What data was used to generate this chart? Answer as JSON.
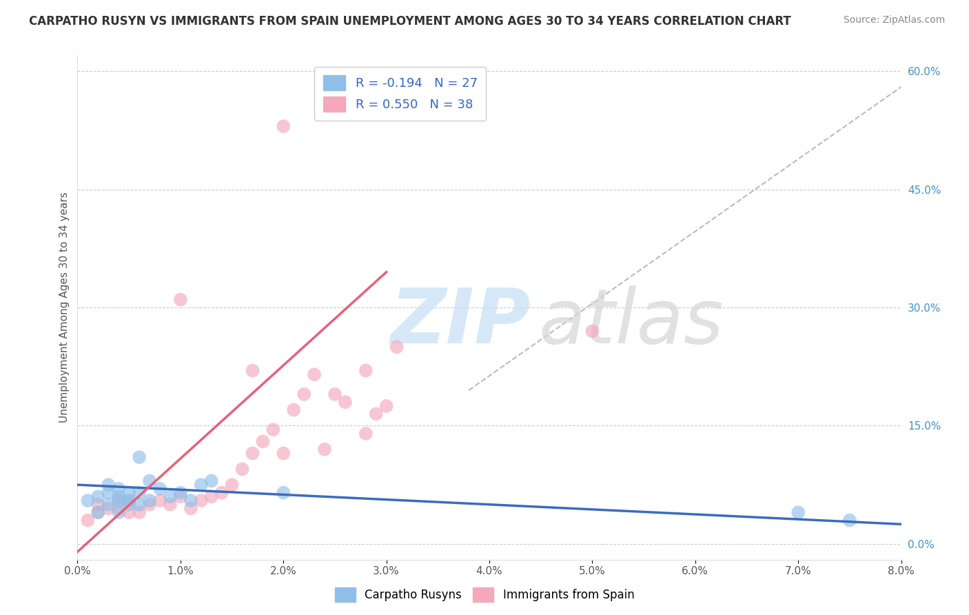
{
  "title": "CARPATHO RUSYN VS IMMIGRANTS FROM SPAIN UNEMPLOYMENT AMONG AGES 30 TO 34 YEARS CORRELATION CHART",
  "source": "Source: ZipAtlas.com",
  "ylabel": "Unemployment Among Ages 30 to 34 years",
  "xlim": [
    0.0,
    0.08
  ],
  "ylim": [
    -0.02,
    0.62
  ],
  "xticks": [
    0.0,
    0.01,
    0.02,
    0.03,
    0.04,
    0.05,
    0.06,
    0.07,
    0.08
  ],
  "xtick_labels": [
    "0.0%",
    "1.0%",
    "2.0%",
    "3.0%",
    "4.0%",
    "5.0%",
    "6.0%",
    "7.0%",
    "8.0%"
  ],
  "yticks_right": [
    0.0,
    0.15,
    0.3,
    0.45,
    0.6
  ],
  "ytick_labels_right": [
    "0.0%",
    "15.0%",
    "30.0%",
    "45.0%",
    "60.0%"
  ],
  "background_color": "#ffffff",
  "grid_color": "#cccccc",
  "legend_r1": "R = -0.194",
  "legend_n1": "N = 27",
  "legend_r2": "R = 0.550",
  "legend_n2": "N = 38",
  "color_blue": "#8fbfe8",
  "color_pink": "#f4a8bc",
  "color_blue_line": "#3b6bbf",
  "color_pink_line": "#e8607a",
  "color_dashed_line": "#bbbbbb",
  "blue_line_x": [
    0.0,
    0.08
  ],
  "blue_line_y": [
    0.075,
    0.025
  ],
  "pink_line_x": [
    0.0,
    0.03
  ],
  "pink_line_y": [
    -0.01,
    0.345
  ],
  "dashed_line_x": [
    0.038,
    0.08
  ],
  "dashed_line_y": [
    0.195,
    0.58
  ],
  "carpatho_x": [
    0.001,
    0.002,
    0.002,
    0.003,
    0.003,
    0.003,
    0.004,
    0.004,
    0.004,
    0.004,
    0.005,
    0.005,
    0.005,
    0.006,
    0.006,
    0.006,
    0.007,
    0.007,
    0.008,
    0.009,
    0.01,
    0.011,
    0.012,
    0.013,
    0.02,
    0.07,
    0.075
  ],
  "carpatho_y": [
    0.055,
    0.04,
    0.06,
    0.05,
    0.065,
    0.075,
    0.04,
    0.055,
    0.06,
    0.07,
    0.05,
    0.055,
    0.065,
    0.05,
    0.065,
    0.11,
    0.055,
    0.08,
    0.07,
    0.06,
    0.065,
    0.055,
    0.075,
    0.08,
    0.065,
    0.04,
    0.03
  ],
  "spain_x": [
    0.001,
    0.002,
    0.002,
    0.003,
    0.004,
    0.004,
    0.005,
    0.005,
    0.006,
    0.007,
    0.008,
    0.009,
    0.01,
    0.011,
    0.012,
    0.013,
    0.014,
    0.015,
    0.016,
    0.017,
    0.018,
    0.019,
    0.02,
    0.021,
    0.022,
    0.023,
    0.024,
    0.025,
    0.026,
    0.028,
    0.028,
    0.029,
    0.03,
    0.031,
    0.05,
    0.01,
    0.02,
    0.017
  ],
  "spain_y": [
    0.03,
    0.04,
    0.05,
    0.045,
    0.045,
    0.055,
    0.04,
    0.055,
    0.04,
    0.05,
    0.055,
    0.05,
    0.06,
    0.045,
    0.055,
    0.06,
    0.065,
    0.075,
    0.095,
    0.115,
    0.13,
    0.145,
    0.115,
    0.17,
    0.19,
    0.215,
    0.12,
    0.19,
    0.18,
    0.22,
    0.14,
    0.165,
    0.175,
    0.25,
    0.27,
    0.31,
    0.53,
    0.22
  ]
}
